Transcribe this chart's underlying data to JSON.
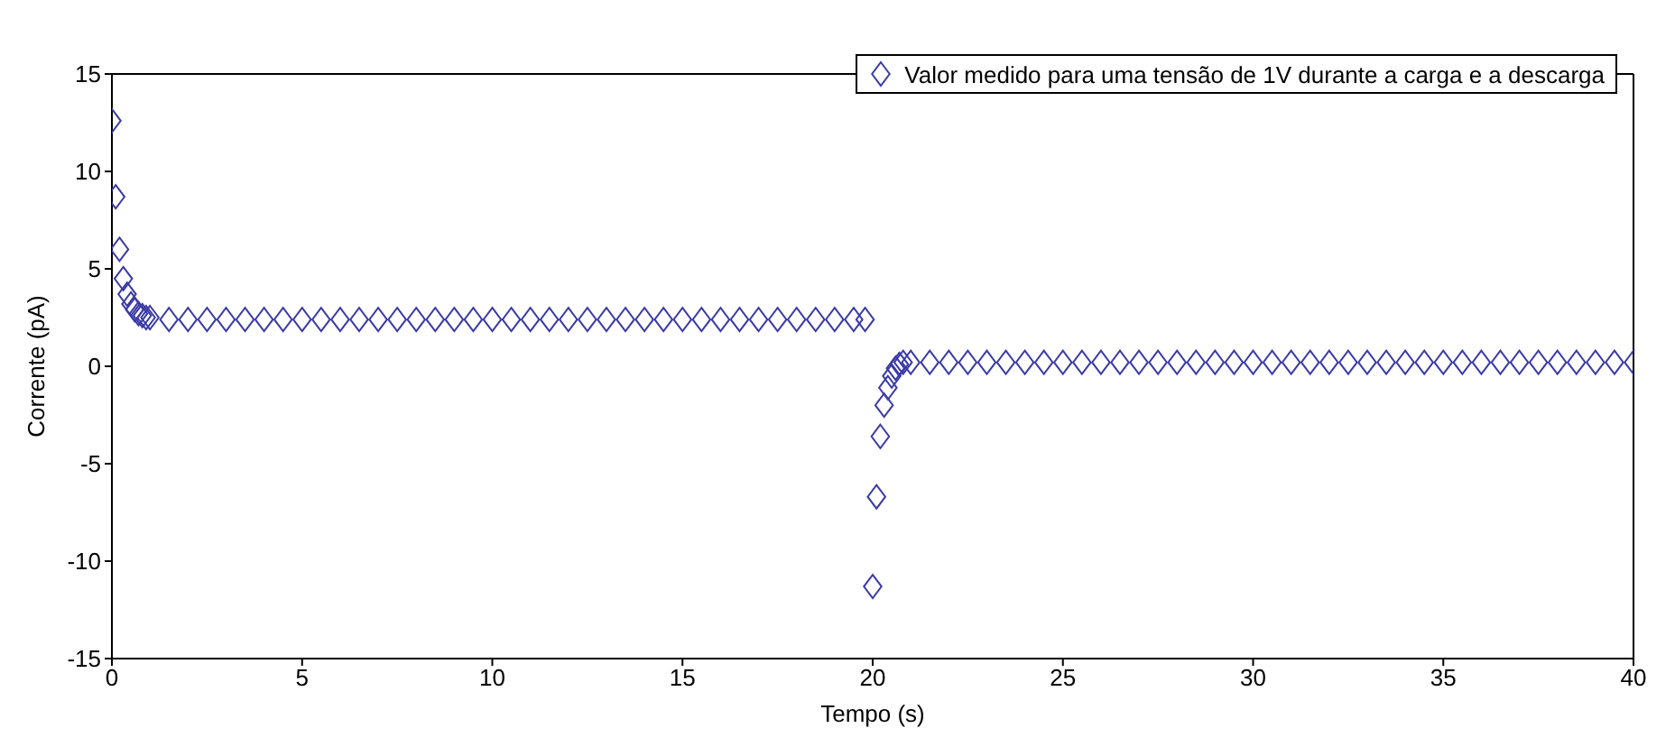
{
  "chart_data": {
    "type": "scatter",
    "xlabel": "Tempo (s)",
    "ylabel": "Corrente (pA)",
    "xlim": [
      0,
      40
    ],
    "xticks": [
      0,
      5,
      10,
      15,
      20,
      25,
      30,
      35,
      40
    ],
    "ylim": [
      -15,
      15
    ],
    "yticks": [
      -15,
      -10,
      -5,
      0,
      5,
      10,
      15
    ],
    "legend": "top right",
    "marker": "diamond",
    "x": [
      0,
      0.1,
      0.2,
      0.3,
      0.4,
      0.5,
      0.6,
      0.7,
      0.8,
      0.9,
      1,
      1.5,
      2,
      2.5,
      3,
      3.5,
      4,
      4.5,
      5,
      5.5,
      6,
      6.5,
      7,
      7.5,
      8,
      8.5,
      9,
      9.5,
      10,
      10.5,
      11,
      11.5,
      12,
      12.5,
      13,
      13.5,
      14,
      14.5,
      15,
      15.5,
      16,
      16.5,
      17,
      17.5,
      18,
      18.5,
      19,
      19.5,
      19.8,
      20,
      20.1,
      20.2,
      20.3,
      20.4,
      20.5,
      20.6,
      20.7,
      20.8,
      21,
      21.5,
      22,
      22.5,
      23,
      23.5,
      24,
      24.5,
      25,
      25.5,
      26,
      26.5,
      27,
      27.5,
      28,
      28.5,
      29,
      29.5,
      30,
      30.5,
      31,
      31.5,
      32,
      32.5,
      33,
      33.5,
      34,
      34.5,
      35,
      35.5,
      36,
      36.5,
      37,
      37.5,
      38,
      38.5,
      39,
      39.5,
      40
    ],
    "series": [
      {
        "name": "Valor medido para uma tensão de 1V durante a carga e a descarga",
        "color": "#3a3aa8",
        "values": [
          12.6,
          8.7,
          6.0,
          4.5,
          3.7,
          3.2,
          2.9,
          2.7,
          2.6,
          2.5,
          2.5,
          2.4,
          2.4,
          2.4,
          2.4,
          2.4,
          2.4,
          2.4,
          2.4,
          2.4,
          2.4,
          2.4,
          2.4,
          2.4,
          2.4,
          2.4,
          2.4,
          2.4,
          2.4,
          2.4,
          2.4,
          2.4,
          2.4,
          2.4,
          2.4,
          2.4,
          2.4,
          2.4,
          2.4,
          2.4,
          2.4,
          2.4,
          2.4,
          2.4,
          2.4,
          2.4,
          2.4,
          2.4,
          2.4,
          -11.3,
          -6.7,
          -3.6,
          -2.0,
          -1.1,
          -0.5,
          -0.1,
          0.1,
          0.2,
          0.2,
          0.2,
          0.2,
          0.2,
          0.2,
          0.2,
          0.2,
          0.2,
          0.2,
          0.2,
          0.2,
          0.2,
          0.2,
          0.2,
          0.2,
          0.2,
          0.2,
          0.2,
          0.2,
          0.2,
          0.2,
          0.2,
          0.2,
          0.2,
          0.2,
          0.2,
          0.2,
          0.2,
          0.2,
          0.2,
          0.2,
          0.2,
          0.2,
          0.2,
          0.2,
          0.2,
          0.2,
          0.2,
          0.2
        ]
      }
    ]
  }
}
